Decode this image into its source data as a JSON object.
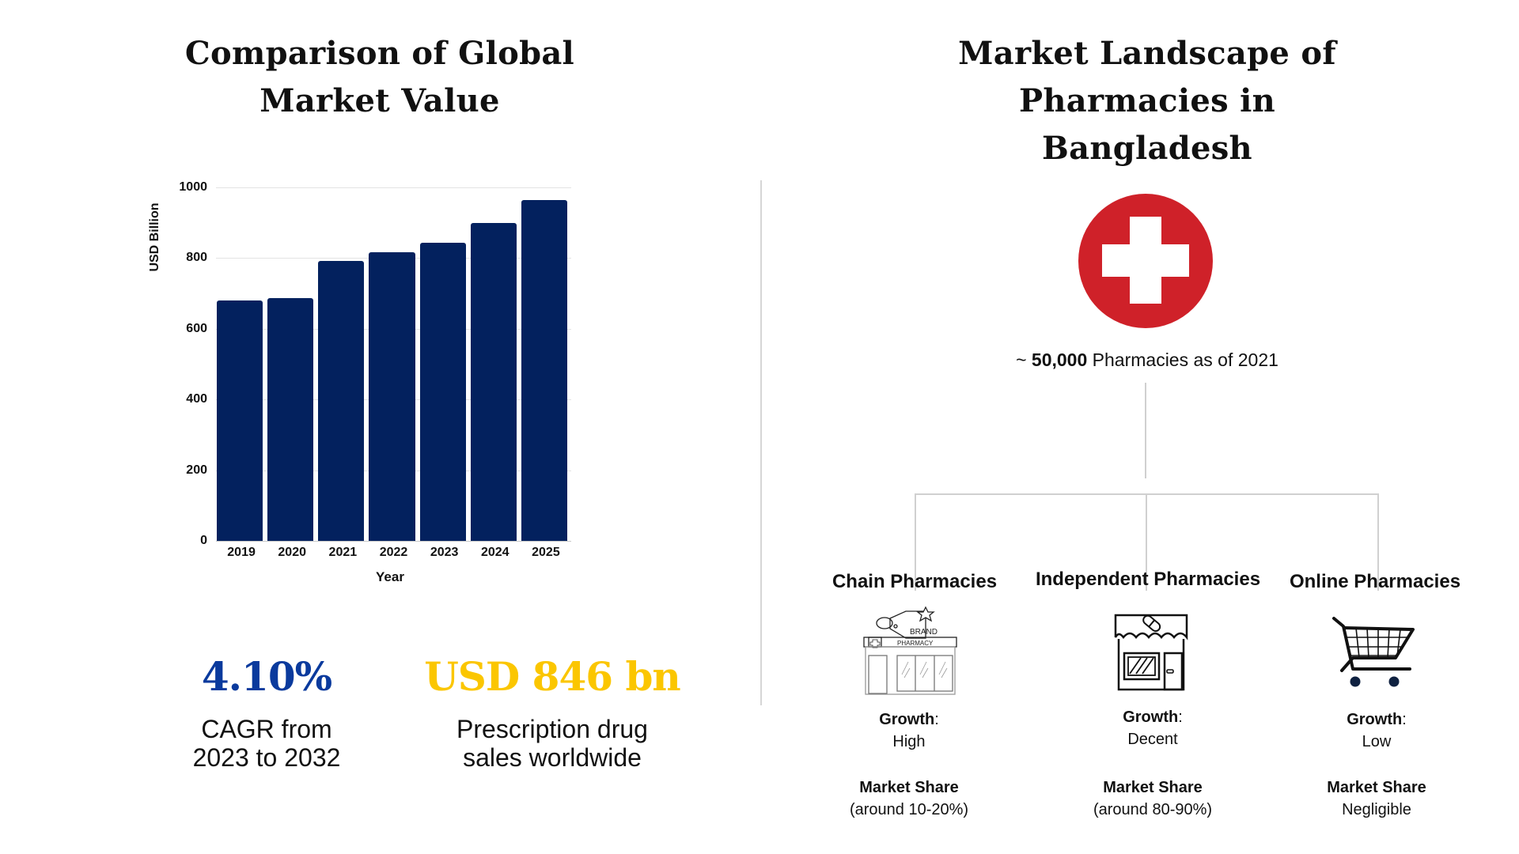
{
  "left_panel": {
    "title_line1": "Comparison of Global",
    "title_line2": "Market Value",
    "stats": [
      {
        "value": "4.10%",
        "color": "#0a3a9d",
        "desc_line1": "CAGR from",
        "desc_line2": "2023 to 2032"
      },
      {
        "value": "USD 846 bn",
        "color": "#fbc600",
        "desc_line1": "Prescription drug",
        "desc_line2": "sales worldwide"
      }
    ]
  },
  "chart_data": {
    "type": "bar",
    "title": "Comparison of Global Market Value",
    "categories": [
      "2019",
      "2020",
      "2021",
      "2022",
      "2023",
      "2024",
      "2025"
    ],
    "values": [
      679,
      687,
      793,
      816,
      844,
      899,
      965
    ],
    "xlabel": "Year",
    "ylabel": "USD Billion",
    "ylim": [
      0,
      1000
    ],
    "yticks": [
      "0",
      "200",
      "400",
      "600",
      "800",
      "1000"
    ],
    "grid": true,
    "bar_color": "#03215e"
  },
  "right_panel": {
    "title_line1": "Market Landscape of",
    "title_line2": "Pharmacies in Bangladesh",
    "icon": "red-cross-icon",
    "accent_color": "#cf2129",
    "count_prefix": "~ ",
    "count_value": "50,000",
    "count_suffix": " Pharmacies as of 2021",
    "categories": [
      {
        "name": "Chain Pharmacies",
        "icon": "chain-pharmacy-store-icon",
        "growth_label": "Growth",
        "growth_value": "High",
        "share_label": "Market Share",
        "share_value": "(around 10-20%)"
      },
      {
        "name": "Independent Pharmacies",
        "icon": "independent-pharmacy-store-icon",
        "growth_label": "Growth",
        "growth_value": "Decent",
        "share_label": "Market Share",
        "share_value": "(around 80-90%)"
      },
      {
        "name": "Online Pharmacies",
        "icon": "shopping-cart-icon",
        "growth_label": "Growth",
        "growth_value": "Low",
        "share_label": "Market Share",
        "share_value": "Negligible"
      }
    ]
  }
}
